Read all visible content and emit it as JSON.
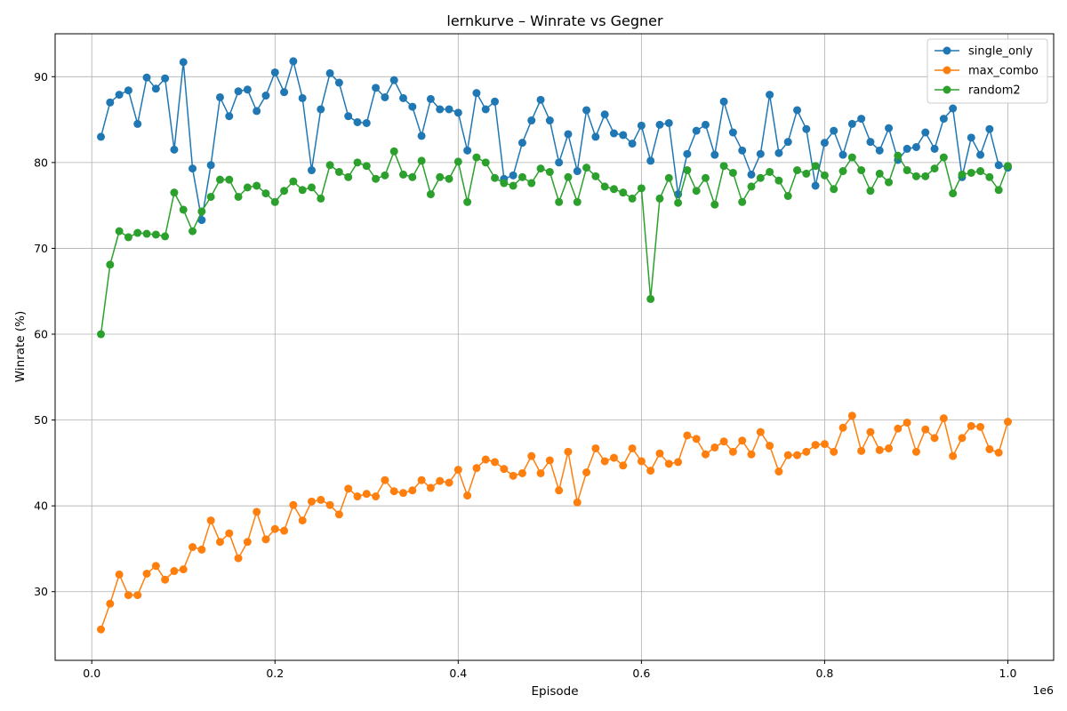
{
  "chart_data": {
    "type": "line",
    "title": "lernkurve – Winrate vs Gegner",
    "xlabel": "Episode",
    "ylabel": "Winrate (%)",
    "x_offset_label": "1e6",
    "xlim": [
      -40000,
      1050000
    ],
    "ylim": [
      22,
      95
    ],
    "x_ticks": [
      0,
      200000,
      400000,
      600000,
      800000,
      1000000
    ],
    "x_tick_labels": [
      "0.0",
      "0.2",
      "0.4",
      "0.6",
      "0.8",
      "1.0"
    ],
    "y_ticks": [
      30,
      40,
      50,
      60,
      70,
      80,
      90
    ],
    "y_tick_labels": [
      "30",
      "40",
      "50",
      "60",
      "70",
      "80",
      "90"
    ],
    "grid": true,
    "legend_position": "top-right",
    "x": [
      10000,
      20000,
      30000,
      40000,
      50000,
      60000,
      70000,
      80000,
      90000,
      100000,
      110000,
      120000,
      130000,
      140000,
      150000,
      160000,
      170000,
      180000,
      190000,
      200000,
      210000,
      220000,
      230000,
      240000,
      250000,
      260000,
      270000,
      280000,
      290000,
      300000,
      310000,
      320000,
      330000,
      340000,
      350000,
      360000,
      370000,
      380000,
      390000,
      400000,
      410000,
      420000,
      430000,
      440000,
      450000,
      460000,
      470000,
      480000,
      490000,
      500000,
      510000,
      520000,
      530000,
      540000,
      550000,
      560000,
      570000,
      580000,
      590000,
      600000,
      610000,
      620000,
      630000,
      640000,
      650000,
      660000,
      670000,
      680000,
      690000,
      700000,
      710000,
      720000,
      730000,
      740000,
      750000,
      760000,
      770000,
      780000,
      790000,
      800000,
      810000,
      820000,
      830000,
      840000,
      850000,
      860000,
      870000,
      880000,
      890000,
      900000,
      910000,
      920000,
      930000,
      940000,
      950000,
      960000,
      970000,
      980000,
      990000,
      1000000
    ],
    "series": [
      {
        "name": "single_only",
        "color": "#1f77b4",
        "values": [
          83.0,
          87.0,
          87.9,
          88.4,
          84.5,
          89.9,
          88.6,
          89.8,
          81.5,
          91.7,
          79.3,
          73.3,
          79.7,
          87.6,
          85.4,
          88.3,
          88.5,
          86.0,
          87.8,
          90.5,
          88.2,
          91.8,
          87.5,
          79.1,
          86.2,
          90.4,
          89.3,
          85.4,
          84.7,
          84.6,
          88.7,
          87.6,
          89.6,
          87.5,
          86.5,
          83.1,
          87.4,
          86.2,
          86.2,
          85.8,
          81.4,
          88.1,
          86.2,
          87.1,
          78.1,
          78.5,
          82.3,
          84.9,
          87.3,
          84.9,
          80.0,
          83.3,
          79.0,
          86.1,
          83.0,
          85.6,
          83.4,
          83.2,
          82.2,
          84.3,
          80.2,
          84.4,
          84.6,
          76.3,
          81.0,
          83.7,
          84.4,
          80.9,
          87.1,
          83.5,
          81.4,
          78.6,
          81.0,
          87.9,
          81.1,
          82.4,
          86.1,
          83.9,
          77.3,
          82.3,
          83.7,
          80.9,
          84.5,
          85.1,
          82.4,
          81.4,
          84.0,
          80.3,
          81.6,
          81.8,
          83.5,
          81.6,
          85.1,
          86.3,
          78.3,
          82.9,
          80.9,
          83.9,
          79.7,
          79.4
        ]
      },
      {
        "name": "max_combo",
        "color": "#ff7f0e",
        "values": [
          25.6,
          28.6,
          32.0,
          29.6,
          29.6,
          32.1,
          33.0,
          31.4,
          32.4,
          32.6,
          35.2,
          34.9,
          38.3,
          35.8,
          36.8,
          33.9,
          35.8,
          39.3,
          36.1,
          37.3,
          37.1,
          40.1,
          38.3,
          40.5,
          40.7,
          40.1,
          39.0,
          42.0,
          41.1,
          41.4,
          41.1,
          43.0,
          41.7,
          41.5,
          41.8,
          43.0,
          42.1,
          42.9,
          42.7,
          44.2,
          41.2,
          44.4,
          45.4,
          45.1,
          44.3,
          43.5,
          43.8,
          45.8,
          43.8,
          45.3,
          41.8,
          46.3,
          40.4,
          43.9,
          46.7,
          45.2,
          45.6,
          44.7,
          46.7,
          45.2,
          44.1,
          46.1,
          44.9,
          45.1,
          48.2,
          47.8,
          46.0,
          46.8,
          47.5,
          46.3,
          47.6,
          46.0,
          48.6,
          47.0,
          44.0,
          45.9,
          45.9,
          46.3,
          47.1,
          47.2,
          46.3,
          49.1,
          50.5,
          46.4,
          48.6,
          46.5,
          46.7,
          49.0,
          49.7,
          46.3,
          48.9,
          47.9,
          50.2,
          45.8,
          47.9,
          49.3,
          49.2,
          46.6,
          46.2,
          49.8
        ]
      },
      {
        "name": "random2",
        "color": "#2ca02c",
        "values": [
          60.0,
          68.1,
          72.0,
          71.3,
          71.8,
          71.7,
          71.6,
          71.4,
          76.5,
          74.5,
          72.0,
          74.3,
          76.0,
          78.0,
          78.0,
          76.0,
          77.1,
          77.3,
          76.4,
          75.4,
          76.7,
          77.8,
          76.8,
          77.1,
          75.8,
          79.7,
          78.9,
          78.3,
          80.0,
          79.6,
          78.1,
          78.5,
          81.3,
          78.6,
          78.3,
          80.2,
          76.3,
          78.3,
          78.1,
          80.1,
          75.4,
          80.6,
          80.0,
          78.2,
          77.6,
          77.3,
          78.3,
          77.6,
          79.3,
          78.9,
          75.4,
          78.3,
          75.4,
          79.4,
          78.4,
          77.2,
          76.9,
          76.5,
          75.8,
          77.0,
          64.1,
          75.8,
          78.2,
          75.3,
          79.1,
          76.7,
          78.2,
          75.1,
          79.6,
          78.8,
          75.4,
          77.2,
          78.2,
          78.9,
          77.9,
          76.1,
          79.1,
          78.7,
          79.6,
          78.5,
          76.9,
          79.0,
          80.6,
          79.1,
          76.7,
          78.7,
          77.7,
          80.8,
          79.1,
          78.4,
          78.4,
          79.3,
          80.6,
          76.4,
          78.6,
          78.8,
          79.0,
          78.3,
          76.8,
          79.6
        ]
      }
    ]
  }
}
